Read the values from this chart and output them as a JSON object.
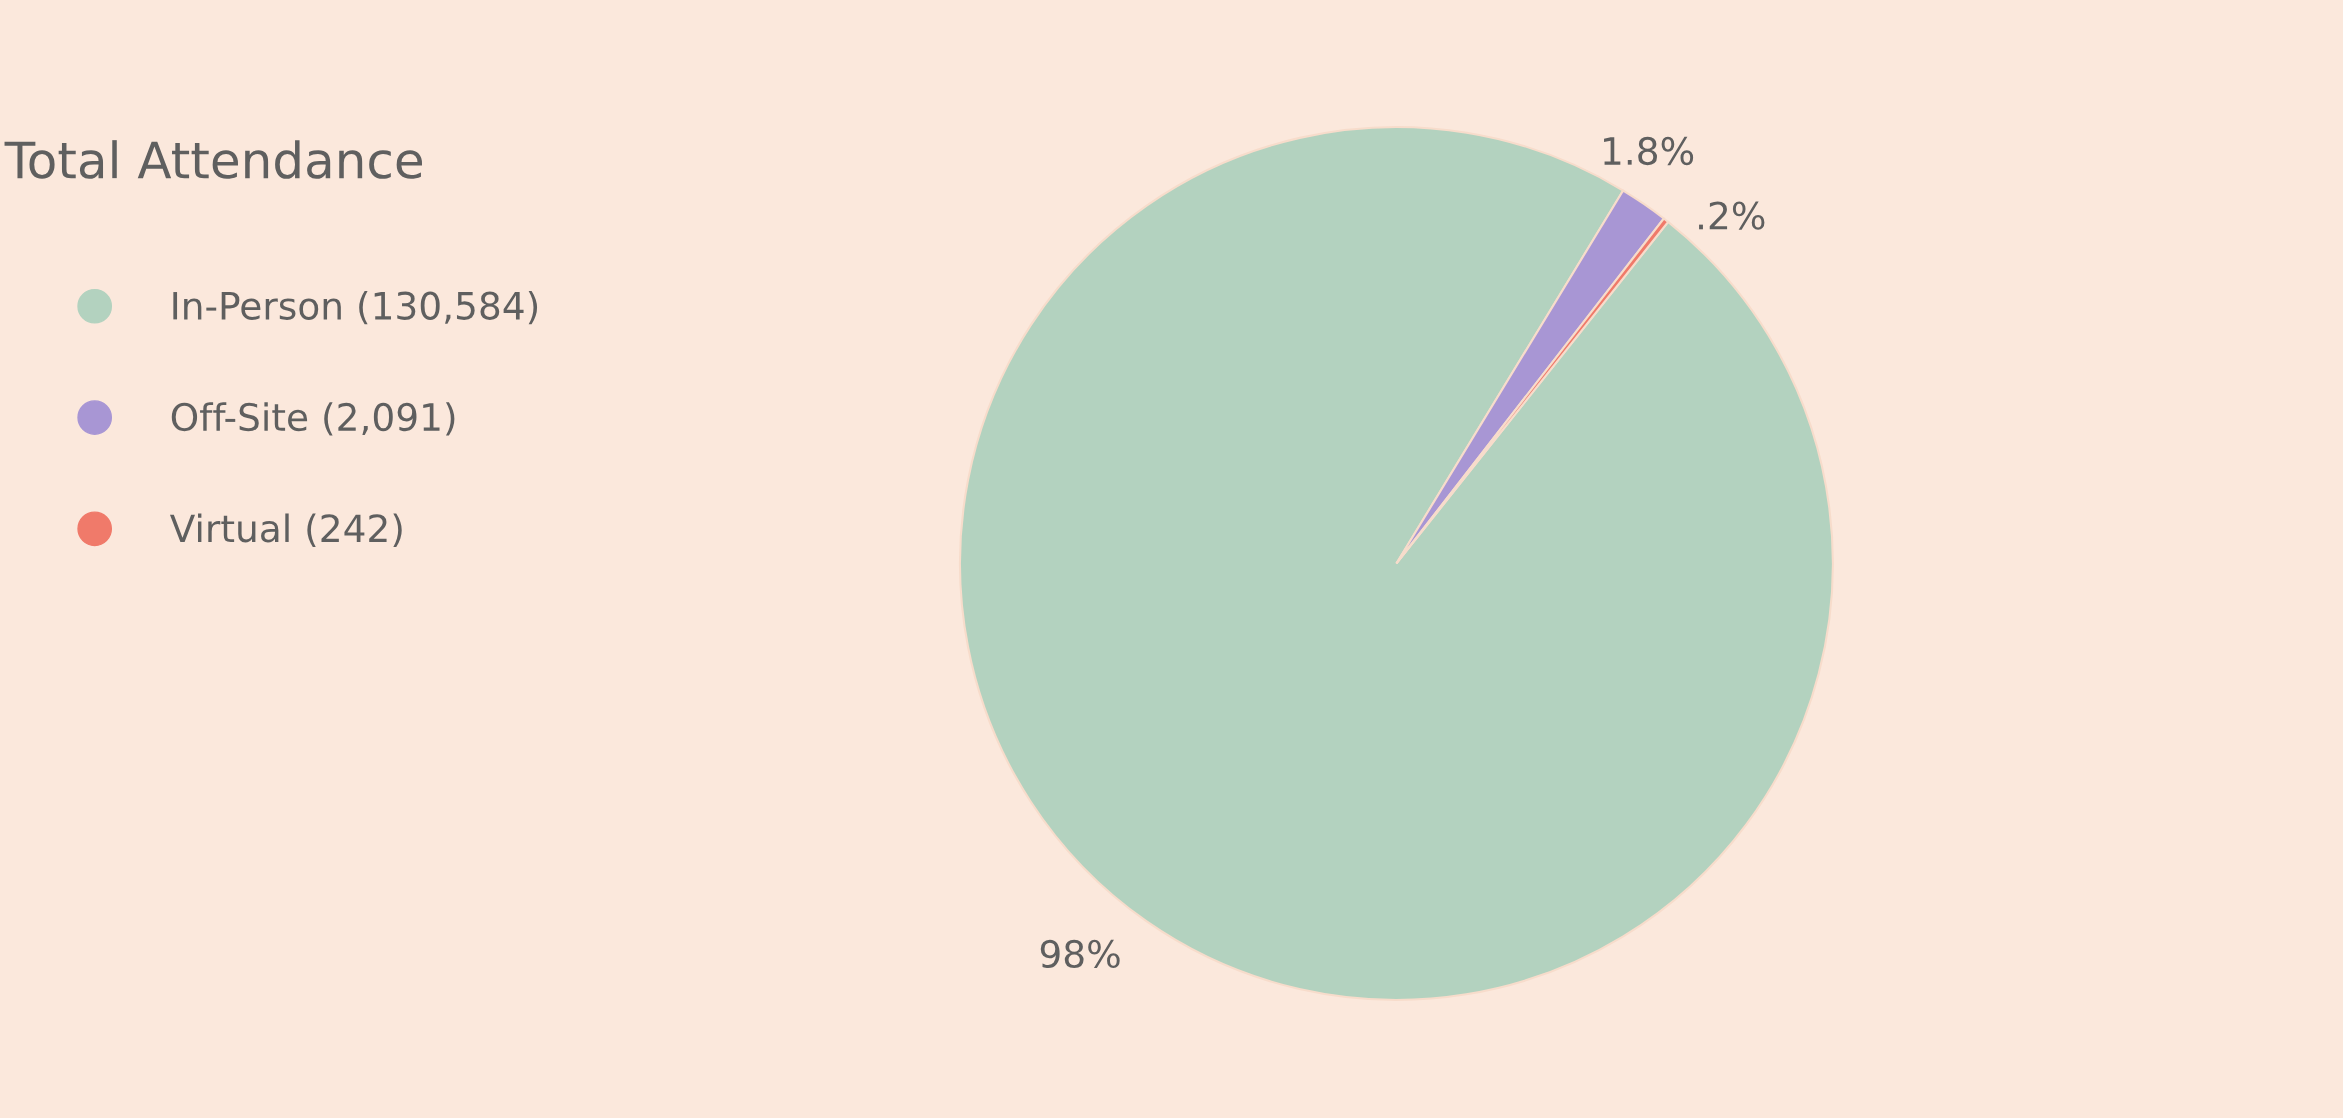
{
  "chart_data": {
    "type": "pie",
    "title": "Total Attendance",
    "categories": [
      "In-Person (130,584)",
      "Off-Site (2,091)",
      "Virtual (242)"
    ],
    "values": [
      98,
      1.8,
      0.2
    ],
    "value_labels": [
      "98%",
      "1.8%",
      ".2%"
    ],
    "colors": [
      "#b3d2bf",
      "#a896d4",
      "#f07a6a"
    ],
    "legend": "left"
  }
}
